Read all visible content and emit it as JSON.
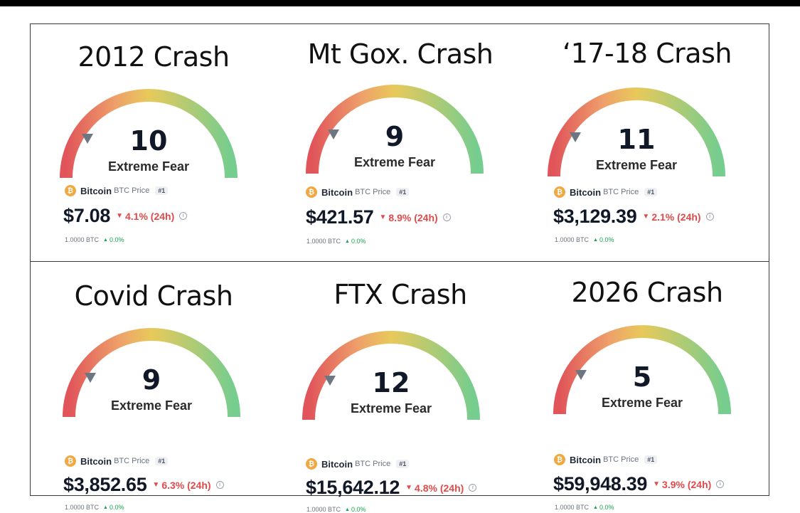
{
  "colors": {
    "red": "#e0545a",
    "orange": "#eea06a",
    "yellow": "#e8c95a",
    "green": "#75cd8f",
    "price_down": "#e04a4a",
    "price_up": "#16a34a",
    "coin": "#f0a843"
  },
  "panels": [
    {
      "title": "2012 Crash",
      "value": "10",
      "label": "Extreme Fear",
      "coin_icon": "₿",
      "coin": "Bitcoin",
      "coin_sub": "BTC Price",
      "rank": "#1",
      "price": "$7.08",
      "change": "4.1% (24h)",
      "sub_amount": "1.0000 BTC",
      "sub_change": "0.0%"
    },
    {
      "title": "Mt Gox. Crash",
      "value": "9",
      "label": "Extreme Fear",
      "coin_icon": "₿",
      "coin": "Bitcoin",
      "coin_sub": "BTC Price",
      "rank": "#1",
      "price": "$421.57",
      "change": "8.9% (24h)",
      "sub_amount": "1.0000 BTC",
      "sub_change": "0.0%"
    },
    {
      "title": "‘17-18 Crash",
      "value": "11",
      "label": "Extreme Fear",
      "coin_icon": "₿",
      "coin": "Bitcoin",
      "coin_sub": "BTC Price",
      "rank": "#1",
      "price": "$3,129.39",
      "change": "2.1% (24h)",
      "sub_amount": "1.0000 BTC",
      "sub_change": "0.0%"
    },
    {
      "title": "Covid Crash",
      "value": "9",
      "label": "Extreme Fear",
      "coin_icon": "₿",
      "coin": "Bitcoin",
      "coin_sub": "BTC Price",
      "rank": "#1",
      "price": "$3,852.65",
      "change": "6.3% (24h)",
      "sub_amount": "1.0000 BTC",
      "sub_change": "0.0%"
    },
    {
      "title": "FTX Crash",
      "value": "12",
      "label": "Extreme Fear",
      "coin_icon": "₿",
      "coin": "Bitcoin",
      "coin_sub": "BTC Price",
      "rank": "#1",
      "price": "$15,642.12",
      "change": "4.8% (24h)",
      "sub_amount": "1.0000 BTC",
      "sub_change": "0.0%"
    },
    {
      "title": "2026 Crash",
      "value": "5",
      "label": "Extreme Fear",
      "coin_icon": "₿",
      "coin": "Bitcoin",
      "coin_sub": "BTC Price",
      "rank": "#1",
      "price": "$59,948.39",
      "change": "3.9% (24h)",
      "sub_amount": "1.0000 BTC",
      "sub_change": "0.0%"
    }
  ]
}
